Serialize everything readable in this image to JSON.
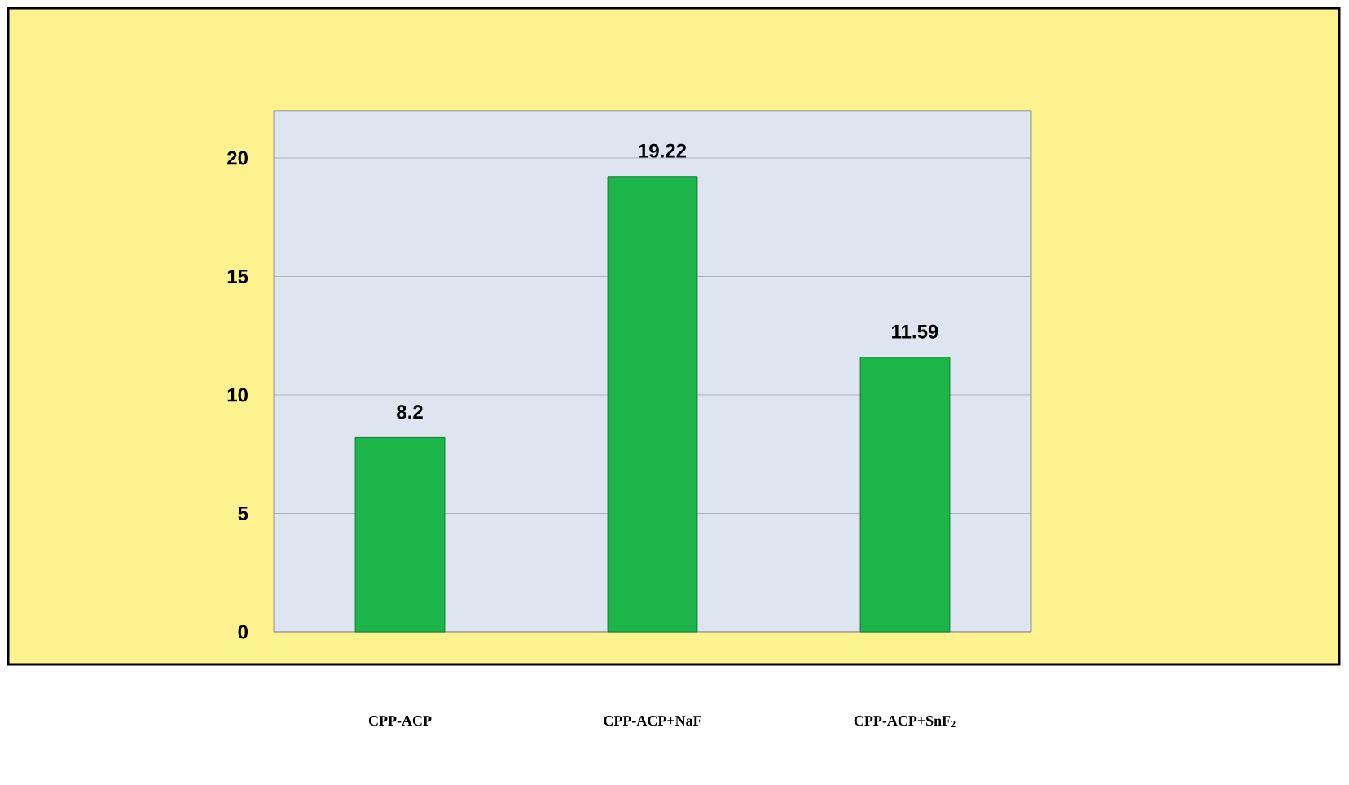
{
  "chart_data": {
    "type": "bar",
    "categories": [
      "CPP-ACP",
      "CPP-ACP+NaF",
      "CPP-ACP+SnF$_{2}$"
    ],
    "values": [
      8.2,
      19.22,
      11.59
    ],
    "color": "#1bb54a",
    "ylim": [
      0,
      22
    ],
    "yticks": [
      0,
      5,
      10,
      15,
      20
    ],
    "grid": "y",
    "data_labels": true
  }
}
